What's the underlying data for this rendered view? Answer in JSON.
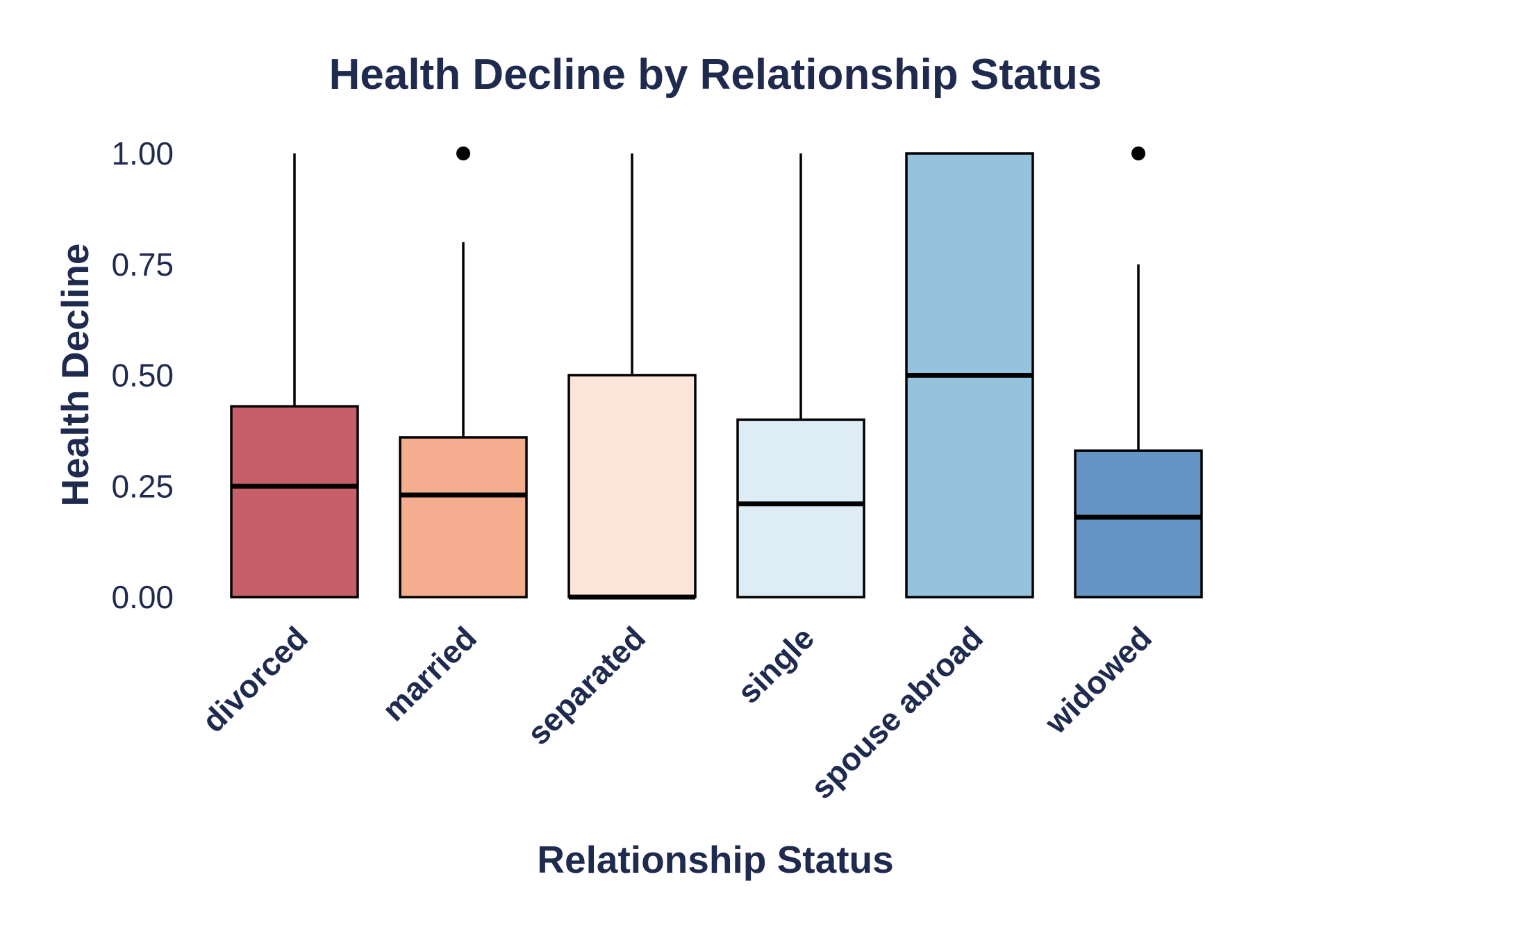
{
  "chart_data": {
    "type": "boxplot",
    "title": "Health Decline by Relationship Status",
    "xlabel": "Relationship Status",
    "ylabel": "Health Decline",
    "ylim": [
      0,
      1
    ],
    "yticks": [
      "0.00",
      "0.25",
      "0.50",
      "0.75",
      "1.00"
    ],
    "grid": false,
    "legend": "none",
    "categories": [
      "divorced",
      "married",
      "separated",
      "single",
      "spouse abroad",
      "widowed"
    ],
    "boxes": [
      {
        "category": "divorced",
        "q1": 0.0,
        "median": 0.25,
        "q3": 0.43,
        "whisker_low": 0.0,
        "whisker_high": 1.0,
        "outliers": [],
        "color": "#c75f69"
      },
      {
        "category": "married",
        "q1": 0.0,
        "median": 0.23,
        "q3": 0.36,
        "whisker_low": 0.0,
        "whisker_high": 0.8,
        "outliers": [
          1.0
        ],
        "color": "#f4ad8f"
      },
      {
        "category": "separated",
        "q1": 0.0,
        "median": 0.0,
        "q3": 0.5,
        "whisker_low": 0.0,
        "whisker_high": 1.0,
        "outliers": [],
        "color": "#fde5d9"
      },
      {
        "category": "single",
        "q1": 0.0,
        "median": 0.21,
        "q3": 0.4,
        "whisker_low": 0.0,
        "whisker_high": 1.0,
        "outliers": [],
        "color": "#deedf5"
      },
      {
        "category": "spouse abroad",
        "q1": 0.0,
        "median": 0.5,
        "q3": 1.0,
        "whisker_low": 0.0,
        "whisker_high": 1.0,
        "outliers": [],
        "color": "#95c2dd"
      },
      {
        "category": "widowed",
        "q1": 0.0,
        "median": 0.18,
        "q3": 0.33,
        "whisker_low": 0.0,
        "whisker_high": 0.75,
        "outliers": [
          1.0
        ],
        "color": "#6594c6"
      }
    ]
  }
}
